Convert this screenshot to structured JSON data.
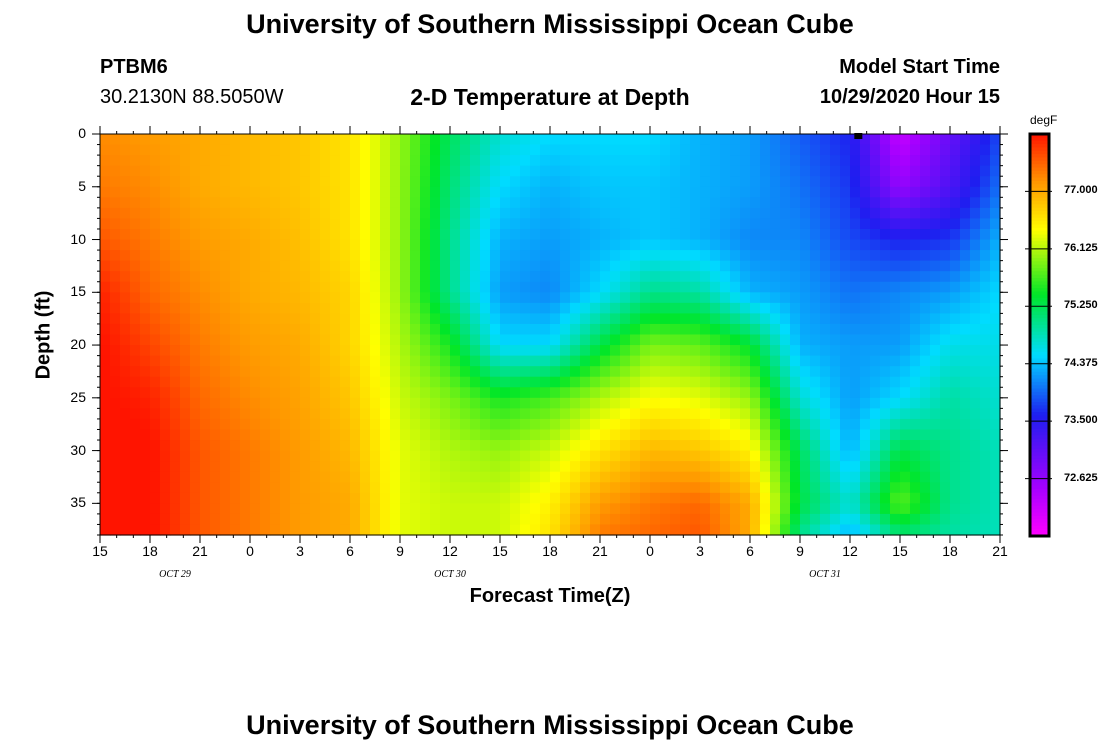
{
  "header": {
    "title": "University of Southern Mississippi Ocean Cube",
    "station": "PTBM6",
    "location": "30.2130N 88.5050W",
    "plot_title": "2-D Temperature at Depth",
    "model_start_label": "Model Start Time",
    "model_start_value": "10/29/2020 Hour 15",
    "footer_title": "University of Southern Mississippi Ocean Cube"
  },
  "chart_data": {
    "type": "heatmap",
    "title": "2-D Temperature at Depth",
    "xlabel": "Forecast Time(Z)",
    "ylabel": "Depth (ft)",
    "x_ticks_hours": [
      0,
      3,
      6,
      9,
      12,
      15,
      18,
      21,
      24,
      27,
      30,
      33,
      36,
      39,
      42,
      45,
      48,
      51,
      54
    ],
    "x_tick_labels": [
      "15",
      "18",
      "21",
      "0",
      "3",
      "6",
      "9",
      "12",
      "15",
      "18",
      "21",
      "0",
      "3",
      "6",
      "9",
      "12",
      "15",
      "18",
      "21"
    ],
    "x_range_hours": [
      0,
      54
    ],
    "date_labels": [
      {
        "label": "OCT 29",
        "hour": 4.5
      },
      {
        "label": "OCT 30",
        "hour": 21
      },
      {
        "label": "OCT 31",
        "hour": 43.5
      }
    ],
    "y_ticks": [
      0,
      5,
      10,
      15,
      20,
      25,
      30,
      35
    ],
    "y_tick_labels": [
      "0",
      "5",
      "10",
      "15",
      "20",
      "25",
      "30",
      "35"
    ],
    "y_range": [
      0,
      38
    ],
    "y_inverted": true,
    "current_time_marker_hour": 45.5,
    "colorbar": {
      "unit": "degF",
      "min": 71.75,
      "max": 77.875,
      "tick_values": [
        77.0,
        76.125,
        75.25,
        74.375,
        73.5,
        72.625
      ],
      "tick_labels": [
        "77.000",
        "76.125",
        "75.250",
        "74.375",
        "73.500",
        "72.625"
      ]
    },
    "temperature_grid": {
      "unit": "degF",
      "hours": [
        0,
        3,
        6,
        9,
        12,
        15,
        18,
        21,
        24,
        27,
        30,
        33,
        36,
        39,
        42,
        45,
        48,
        51,
        54
      ],
      "depths": [
        0,
        5,
        10,
        15,
        20,
        25,
        30,
        35,
        38
      ],
      "values": [
        [
          77.2,
          77.3,
          77.5,
          77.8,
          77.9,
          77.9,
          77.95,
          77.95,
          77.9
        ],
        [
          77.1,
          77.2,
          77.3,
          77.4,
          77.6,
          77.8,
          77.9,
          77.9,
          77.9
        ],
        [
          77.0,
          77.0,
          77.1,
          77.2,
          77.3,
          77.4,
          77.5,
          77.5,
          77.5
        ],
        [
          76.9,
          76.9,
          77.0,
          77.0,
          77.1,
          77.2,
          77.3,
          77.3,
          77.3
        ],
        [
          76.8,
          76.8,
          76.85,
          76.9,
          77.0,
          77.05,
          77.1,
          77.1,
          77.1
        ],
        [
          76.6,
          76.6,
          76.6,
          76.7,
          76.7,
          76.8,
          76.9,
          77.0,
          77.0
        ],
        [
          76.0,
          76.0,
          76.0,
          76.0,
          76.1,
          76.2,
          76.3,
          76.3,
          76.3
        ],
        [
          75.2,
          75.1,
          75.0,
          75.0,
          75.5,
          75.9,
          76.1,
          76.2,
          76.2
        ],
        [
          74.7,
          74.5,
          74.3,
          74.2,
          74.5,
          75.5,
          76.0,
          76.2,
          76.2
        ],
        [
          74.5,
          74.3,
          74.2,
          74.1,
          74.5,
          75.7,
          76.2,
          76.5,
          76.6
        ],
        [
          74.5,
          74.4,
          74.3,
          74.5,
          75.3,
          76.1,
          76.6,
          77.1,
          77.3
        ],
        [
          74.5,
          74.4,
          74.4,
          75.0,
          75.9,
          76.4,
          76.9,
          77.3,
          77.4
        ],
        [
          74.3,
          74.3,
          74.3,
          74.9,
          75.8,
          76.3,
          76.8,
          77.4,
          77.5
        ],
        [
          74.2,
          74.2,
          74.1,
          74.3,
          75.4,
          76.0,
          76.5,
          77.0,
          77.0
        ],
        [
          73.9,
          74.0,
          74.1,
          74.2,
          74.3,
          74.7,
          75.2,
          75.3,
          75.0
        ],
        [
          73.6,
          73.7,
          73.8,
          74.0,
          74.2,
          74.2,
          74.3,
          74.7,
          74.3
        ],
        [
          72.2,
          72.6,
          73.6,
          74.1,
          74.2,
          74.5,
          75.3,
          75.8,
          75.1
        ],
        [
          73.0,
          73.2,
          73.7,
          74.2,
          74.6,
          74.9,
          75.0,
          75.0,
          74.9
        ],
        [
          73.8,
          74.0,
          74.3,
          74.5,
          74.6,
          74.7,
          74.8,
          74.8,
          74.8
        ]
      ]
    }
  }
}
